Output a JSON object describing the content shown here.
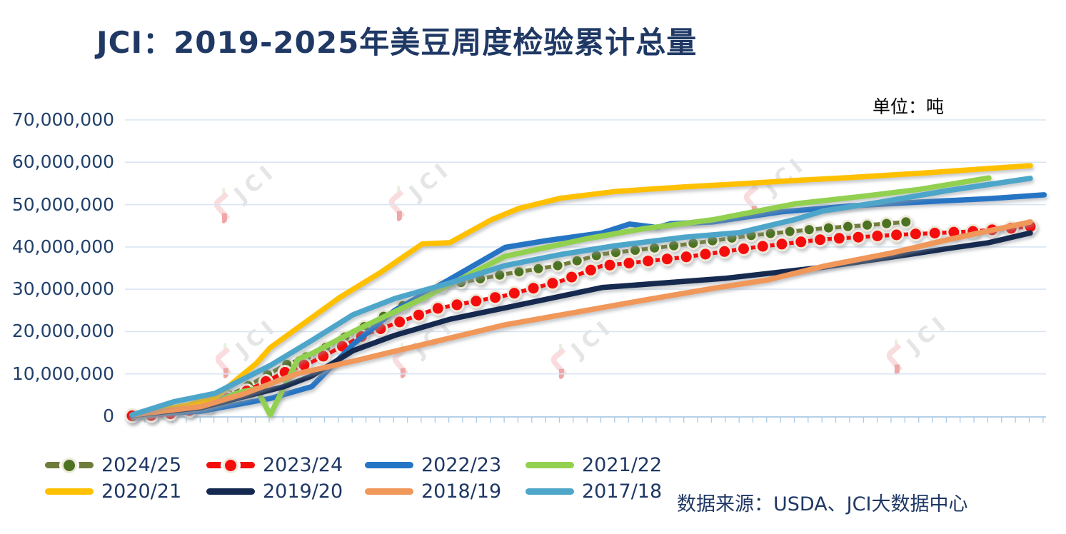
{
  "page": {
    "title": "JCI：2019-2025年美豆周度检验累计总量",
    "unit_label": "单位：吨",
    "source_label": "数据来源：USDA、JCI大数据中心",
    "watermark_text": "JCI"
  },
  "chart_data": {
    "type": "line",
    "title": "JCI：2019-2025年美豆周度检验累计总量",
    "unit": "吨",
    "xlabel": "",
    "ylabel": "",
    "ylim": [
      0,
      70000000
    ],
    "y_tick_labels": [
      "70,000,000",
      "60,000,000",
      "50,000,000",
      "40,000,000",
      "30,000,000",
      "20,000,000",
      "10,000,000",
      "0"
    ],
    "x_tick_count": 67,
    "x_unit": "week-index",
    "grid": "horizontal",
    "legend_position": "bottom",
    "series": [
      {
        "name": "2024/25",
        "color": "#6F7D3A",
        "marker": true,
        "marker_color": "#4C7322",
        "r": 6.5,
        "points": [
          [
            0,
            100000
          ],
          [
            2,
            300000
          ],
          [
            5,
            2000000
          ],
          [
            8,
            6500000
          ],
          [
            11,
            12000000
          ],
          [
            13,
            14500000
          ],
          [
            15,
            18000000
          ],
          [
            19,
            25000000
          ],
          [
            22,
            30500000
          ],
          [
            27,
            33600000
          ],
          [
            31,
            35700000
          ],
          [
            34,
            38300000
          ],
          [
            40,
            40600000
          ],
          [
            45,
            42800000
          ],
          [
            50,
            44400000
          ],
          [
            53,
            45100000
          ],
          [
            56,
            45900000
          ]
        ]
      },
      {
        "name": "2023/24",
        "color": "#F50D0D",
        "marker": true,
        "marker_color": "#F50D0D",
        "r": 7.5,
        "points": [
          [
            0,
            100000
          ],
          [
            2,
            200000
          ],
          [
            5,
            1800000
          ],
          [
            8,
            5500000
          ],
          [
            11,
            10300000
          ],
          [
            13,
            12800000
          ],
          [
            17,
            19500000
          ],
          [
            22,
            25400000
          ],
          [
            27,
            28500000
          ],
          [
            31,
            31900000
          ],
          [
            34,
            35500000
          ],
          [
            40,
            37600000
          ],
          [
            45,
            39900000
          ],
          [
            50,
            41800000
          ],
          [
            55,
            42800000
          ],
          [
            61,
            43700000
          ],
          [
            65,
            44800000
          ]
        ]
      },
      {
        "name": "2022/23",
        "color": "#2575C4",
        "marker": false,
        "points": [
          [
            0,
            200000
          ],
          [
            5,
            1200000
          ],
          [
            10,
            4200000
          ],
          [
            13,
            7000000
          ],
          [
            16,
            17000000
          ],
          [
            19,
            25000000
          ],
          [
            22,
            30500000
          ],
          [
            27,
            39900000
          ],
          [
            30,
            41500000
          ],
          [
            34,
            43300000
          ],
          [
            36,
            45400000
          ],
          [
            38,
            44600000
          ],
          [
            39,
            45500000
          ],
          [
            42,
            45900000
          ],
          [
            47,
            48300000
          ],
          [
            52,
            49700000
          ],
          [
            57,
            50600000
          ],
          [
            62,
            51400000
          ],
          [
            66,
            52300000
          ]
        ]
      },
      {
        "name": "2021/22",
        "color": "#92D050",
        "marker": false,
        "points": [
          [
            0,
            200000
          ],
          [
            5,
            2600000
          ],
          [
            8,
            5800000
          ],
          [
            9,
            6500000
          ],
          [
            10,
            300000
          ],
          [
            12,
            13500000
          ],
          [
            13,
            14800000
          ],
          [
            16,
            20000000
          ],
          [
            21,
            27800000
          ],
          [
            27,
            37800000
          ],
          [
            33,
            42000000
          ],
          [
            37,
            44300000
          ],
          [
            42,
            46400000
          ],
          [
            48,
            50200000
          ],
          [
            53,
            52000000
          ],
          [
            57,
            53600000
          ],
          [
            62,
            56300000
          ]
        ]
      },
      {
        "name": "2020/21",
        "color": "#FFC000",
        "marker": false,
        "points": [
          [
            0,
            300000
          ],
          [
            4,
            2600000
          ],
          [
            6,
            4400000
          ],
          [
            9,
            12500000
          ],
          [
            10,
            16200000
          ],
          [
            15,
            28000000
          ],
          [
            18,
            34000000
          ],
          [
            21,
            40700000
          ],
          [
            23,
            41000000
          ],
          [
            26,
            46400000
          ],
          [
            28,
            49100000
          ],
          [
            31,
            51500000
          ],
          [
            35,
            53100000
          ],
          [
            40,
            54200000
          ],
          [
            44,
            54900000
          ],
          [
            48,
            55700000
          ],
          [
            52,
            56400000
          ],
          [
            57,
            57400000
          ],
          [
            61,
            58300000
          ],
          [
            65,
            59200000
          ]
        ]
      },
      {
        "name": "2019/20",
        "color": "#14294F",
        "marker": false,
        "points": [
          [
            0,
            200000
          ],
          [
            5,
            2000000
          ],
          [
            8,
            4500000
          ],
          [
            11,
            7000000
          ],
          [
            13,
            9500000
          ],
          [
            16,
            15500000
          ],
          [
            19,
            19100000
          ],
          [
            23,
            22900000
          ],
          [
            27,
            25600000
          ],
          [
            34,
            30400000
          ],
          [
            43,
            32600000
          ],
          [
            50,
            35200000
          ],
          [
            55,
            37600000
          ],
          [
            59,
            39600000
          ],
          [
            62,
            41000000
          ],
          [
            65,
            43300000
          ]
        ]
      },
      {
        "name": "2018/19",
        "color": "#F0975A",
        "marker": false,
        "points": [
          [
            0,
            300000
          ],
          [
            5,
            2300000
          ],
          [
            8,
            5200000
          ],
          [
            12,
            10100000
          ],
          [
            16,
            13000000
          ],
          [
            21,
            16900000
          ],
          [
            27,
            21600000
          ],
          [
            32,
            24500000
          ],
          [
            37,
            27400000
          ],
          [
            42,
            30200000
          ],
          [
            46,
            32200000
          ],
          [
            50,
            35400000
          ],
          [
            55,
            38600000
          ],
          [
            59,
            41700000
          ],
          [
            65,
            45900000
          ]
        ]
      },
      {
        "name": "2017/18",
        "color": "#4EA6C9",
        "marker": false,
        "points": [
          [
            0,
            300000
          ],
          [
            3,
            3400000
          ],
          [
            6,
            5400000
          ],
          [
            10,
            12000000
          ],
          [
            13,
            17900000
          ],
          [
            16,
            24000000
          ],
          [
            19,
            27800000
          ],
          [
            23,
            31500000
          ],
          [
            27,
            35600000
          ],
          [
            31,
            38200000
          ],
          [
            35,
            40300000
          ],
          [
            40,
            42300000
          ],
          [
            44,
            43400000
          ],
          [
            48,
            46500000
          ],
          [
            50,
            48500000
          ],
          [
            54,
            50500000
          ],
          [
            59,
            53300000
          ],
          [
            65,
            56200000
          ]
        ]
      }
    ]
  }
}
